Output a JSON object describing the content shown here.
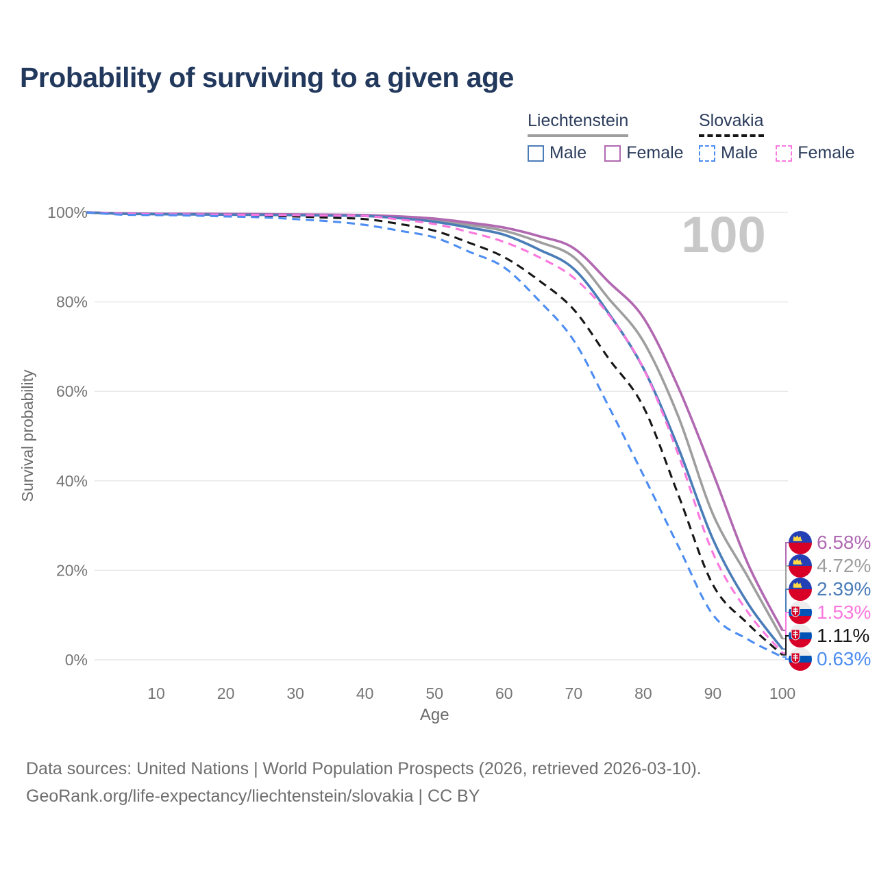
{
  "title": "Probability of surviving to a given age",
  "watermark_age": "100",
  "legend": {
    "groups": [
      {
        "label": "Liechtenstein",
        "line_style": "solid",
        "line_color": "#9e9e9e",
        "items": [
          {
            "label": "Male",
            "color": "#4a7cb8",
            "dashed": false
          },
          {
            "label": "Female",
            "color": "#b168b1",
            "dashed": false
          }
        ]
      },
      {
        "label": "Slovakia",
        "line_style": "dashed",
        "line_color": "#161616",
        "items": [
          {
            "label": "Male",
            "color": "#4d8df2",
            "dashed": true
          },
          {
            "label": "Female",
            "color": "#fa78de",
            "dashed": true
          }
        ]
      }
    ]
  },
  "chart_data": {
    "type": "line",
    "title": "Probability of surviving to a given age",
    "xlabel": "Age",
    "ylabel": "Survival probability",
    "xlim": [
      0,
      100
    ],
    "ylim": [
      0,
      100
    ],
    "grid": "horizontal-only",
    "x_ticks": [
      10,
      20,
      30,
      40,
      50,
      60,
      70,
      80,
      90,
      100
    ],
    "y_ticks": [
      {
        "value": 100,
        "label": "100%"
      },
      {
        "value": 80,
        "label": "80%"
      },
      {
        "value": 60,
        "label": "60%"
      },
      {
        "value": 40,
        "label": "40%"
      },
      {
        "value": 20,
        "label": "20%"
      },
      {
        "value": 0,
        "label": "0%"
      }
    ],
    "ages": [
      0,
      5,
      10,
      15,
      20,
      25,
      30,
      35,
      40,
      45,
      50,
      55,
      60,
      65,
      70,
      75,
      80,
      85,
      90,
      95,
      100
    ],
    "series": [
      {
        "name": "Liechtenstein (both sexes)",
        "color": "#9e9e9e",
        "dashed": false,
        "values": [
          100,
          99.75,
          99.65,
          99.6,
          99.57,
          99.53,
          99.48,
          99.4,
          99.3,
          98.9,
          98.2,
          97.2,
          95.9,
          93.4,
          90.0,
          80.8,
          71.2,
          54.5,
          32.6,
          18.6,
          4.72
        ]
      },
      {
        "name": "Liechtenstein Female",
        "color": "#b168b1",
        "dashed": false,
        "values": [
          100,
          99.8,
          99.7,
          99.68,
          99.65,
          99.6,
          99.55,
          99.5,
          99.4,
          99.1,
          98.6,
          97.7,
          96.6,
          94.7,
          92.0,
          84.5,
          76.5,
          61.0,
          41.8,
          21.6,
          6.58
        ]
      },
      {
        "name": "Liechtenstein Male",
        "color": "#4a7cb8",
        "dashed": false,
        "values": [
          100,
          99.7,
          99.6,
          99.55,
          99.5,
          99.45,
          99.4,
          99.3,
          99.2,
          98.7,
          97.9,
          96.6,
          95.0,
          91.7,
          87.4,
          77.5,
          65.2,
          47.5,
          27.0,
          12.7,
          2.39
        ]
      },
      {
        "name": "Slovakia (both sexes)",
        "color": "#161616",
        "dashed": true,
        "values": [
          100,
          99.6,
          99.5,
          99.45,
          99.35,
          99.25,
          99.1,
          98.8,
          98.5,
          97.4,
          95.9,
          93.2,
          90.0,
          84.8,
          78.3,
          67.4,
          56.6,
          37.0,
          16.8,
          8.1,
          1.11
        ]
      },
      {
        "name": "Slovakia Female",
        "color": "#fa78de",
        "dashed": true,
        "values": [
          100,
          99.7,
          99.6,
          99.55,
          99.5,
          99.45,
          99.38,
          99.3,
          99.2,
          98.4,
          97.4,
          95.6,
          93.4,
          90.0,
          85.4,
          77.2,
          65.2,
          46.0,
          23.9,
          10.7,
          1.53
        ]
      },
      {
        "name": "Slovakia Male",
        "color": "#4d8df2",
        "dashed": true,
        "values": [
          100,
          99.5,
          99.4,
          99.3,
          99.1,
          98.9,
          98.5,
          98.0,
          97.2,
          95.9,
          94.4,
          91.2,
          87.7,
          80.3,
          71.4,
          56.7,
          41.3,
          25.5,
          10.1,
          4.6,
          0.63
        ]
      }
    ],
    "end_labels": [
      {
        "text": "6.58%",
        "series": "Liechtenstein Female",
        "color": "#b06ab3",
        "flag": "liechtenstein"
      },
      {
        "text": "4.72%",
        "series": "Liechtenstein (both sexes)",
        "color": "#9e9e9e",
        "flag": "liechtenstein"
      },
      {
        "text": "2.39%",
        "series": "Liechtenstein Male",
        "color": "#4a7cb8",
        "flag": "liechtenstein"
      },
      {
        "text": "1.53%",
        "series": "Slovakia Female",
        "color": "#fa78de",
        "flag": "slovakia"
      },
      {
        "text": "1.11%",
        "series": "Slovakia (both sexes)",
        "color": "#161616",
        "flag": "slovakia"
      },
      {
        "text": "0.63%",
        "series": "Slovakia Male",
        "color": "#4d8df2",
        "flag": "slovakia"
      }
    ],
    "legend_position": "top-right"
  },
  "footer": {
    "line1": "Data sources: United Nations | World Population Prospects (2026, retrieved 2026-03-10).",
    "line2": "GeoRank.org/life-expectancy/liechtenstein/slovakia | CC BY"
  },
  "colors": {
    "title": "#22395d",
    "axis_text": "#757575",
    "axis_label": "#6b6b6b",
    "gridline": "#e7e7e7",
    "watermark": "#c8c8c8",
    "footer": "#6e6e6e",
    "flag_li_blue": "#2340b4",
    "flag_li_red": "#d80027",
    "flag_li_crown": "#ffda44",
    "flag_sk_white": "#ededed",
    "flag_sk_blue": "#0052b4",
    "flag_sk_red": "#d80027"
  }
}
